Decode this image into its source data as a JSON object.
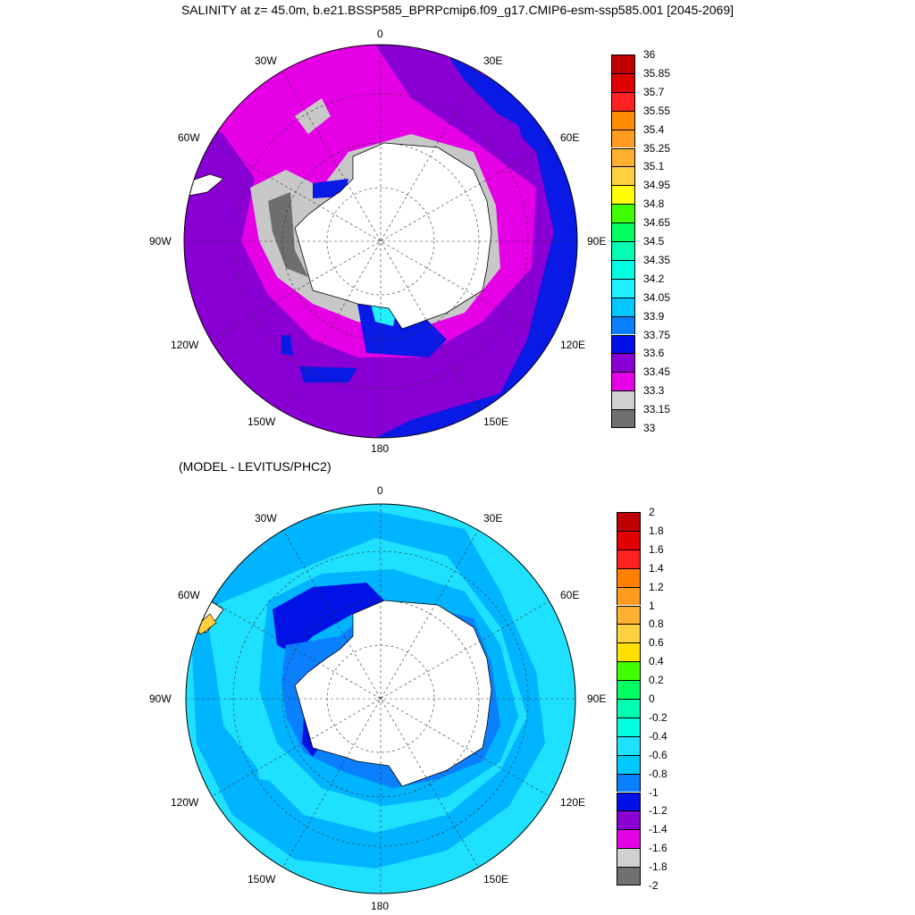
{
  "title": "SALINITY at z=  45.0m, b.e21.BSSP585_BPRPcmip6.f09_g17.CMIP6-esm-ssp585.001 [2045-2069]",
  "subtitle": "(MODEL - LEVITUS/PHC2)",
  "lon_labels": {
    "0": "0",
    "30E": "30E",
    "60E": "60E",
    "90E": "90E",
    "120E": "120E",
    "150E": "150E",
    "180": "180",
    "150W": "150W",
    "120W": "120W",
    "90W": "90W",
    "60W": "60W",
    "30W": "30W"
  },
  "colors": {
    "land": "#ffffff",
    "top_ocean": "#8a00d4",
    "top_magenta": "#e600e6",
    "top_blue": "#0a1ae6",
    "top_gray": "#c8c8c8",
    "top_darkgray": "#6e6e6e",
    "bottom_ocean": "#1ee0ff",
    "bottom_mid": "#00b4ff",
    "bottom_blue": "#0a80ff",
    "bottom_dark": "#0012e6"
  },
  "colorbar_top": {
    "levels": [
      "36",
      "35.85",
      "35.7",
      "35.55",
      "35.4",
      "35.25",
      "35.1",
      "34.95",
      "34.8",
      "34.65",
      "34.5",
      "34.35",
      "34.2",
      "34.05",
      "33.9",
      "33.75",
      "33.6",
      "33.45",
      "33.3",
      "33.15",
      "33"
    ],
    "colors": [
      "#c00000",
      "#e00000",
      "#ff2020",
      "#ff8c00",
      "#ff9c20",
      "#ffb030",
      "#ffd040",
      "#ffff00",
      "#40ff00",
      "#00ff60",
      "#00ffb0",
      "#00ffe0",
      "#20f0ff",
      "#00c8ff",
      "#0a80ff",
      "#0010e6",
      "#8a00d4",
      "#e600e6",
      "#d0d0d0",
      "#707070"
    ]
  },
  "colorbar_bottom": {
    "levels": [
      "2",
      "1.8",
      "1.6",
      "1.4",
      "1.2",
      "1",
      "0.8",
      "0.6",
      "0.4",
      "0.2",
      "0",
      "-0.2",
      "-0.4",
      "-0.6",
      "-0.8",
      "-1",
      "-1.2",
      "-1.4",
      "-1.6",
      "-1.8",
      "-2"
    ],
    "colors": [
      "#c00000",
      "#e00000",
      "#ff2020",
      "#ff8000",
      "#ff9c20",
      "#ffb030",
      "#ffd040",
      "#ffe000",
      "#40ff00",
      "#00ff60",
      "#00ffb0",
      "#00ffe0",
      "#20e0ff",
      "#00c8ff",
      "#0a80ff",
      "#0010e6",
      "#8a00d4",
      "#e600e6",
      "#d0d0d0",
      "#707070"
    ]
  }
}
